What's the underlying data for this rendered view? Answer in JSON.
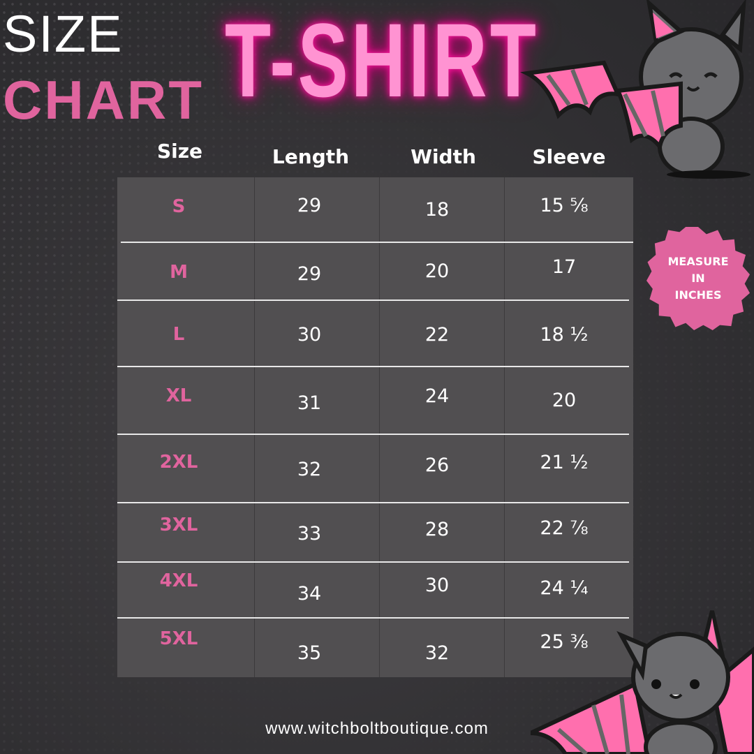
{
  "title": {
    "size": "SIZE",
    "chart": "CHART",
    "product": "T-SHIRT"
  },
  "colors": {
    "accent_pink": "#e0649e",
    "neon_pink": "#ff93d2",
    "table_bg": "#514f51"
  },
  "table": {
    "headers": [
      "Size",
      "Length",
      "Width",
      "Sleeve"
    ],
    "rows": [
      {
        "size": "S",
        "length": "29",
        "width": "18",
        "sleeve": "15 ⅝"
      },
      {
        "size": "M",
        "length": "29",
        "width": "20",
        "sleeve": "17"
      },
      {
        "size": "L",
        "length": "30",
        "width": "22",
        "sleeve": "18 ½"
      },
      {
        "size": "XL",
        "length": "31",
        "width": "24",
        "sleeve": "20"
      },
      {
        "size": "2XL",
        "length": "32",
        "width": "26",
        "sleeve": "21 ½"
      },
      {
        "size": "3XL",
        "length": "33",
        "width": "28",
        "sleeve": "22 ⅞"
      },
      {
        "size": "4XL",
        "length": "34",
        "width": "30",
        "sleeve": "24 ¼"
      },
      {
        "size": "5XL",
        "length": "35",
        "width": "32",
        "sleeve": "25 ⅜"
      }
    ]
  },
  "badge": {
    "line1": "MEASURE",
    "line2": "IN",
    "line3": "INCHES"
  },
  "footer": {
    "website": "www.witchboltboutique.com"
  },
  "icons": {
    "top_right": "bat-mascot-icon",
    "bottom_right": "bat-mascot-icon"
  }
}
